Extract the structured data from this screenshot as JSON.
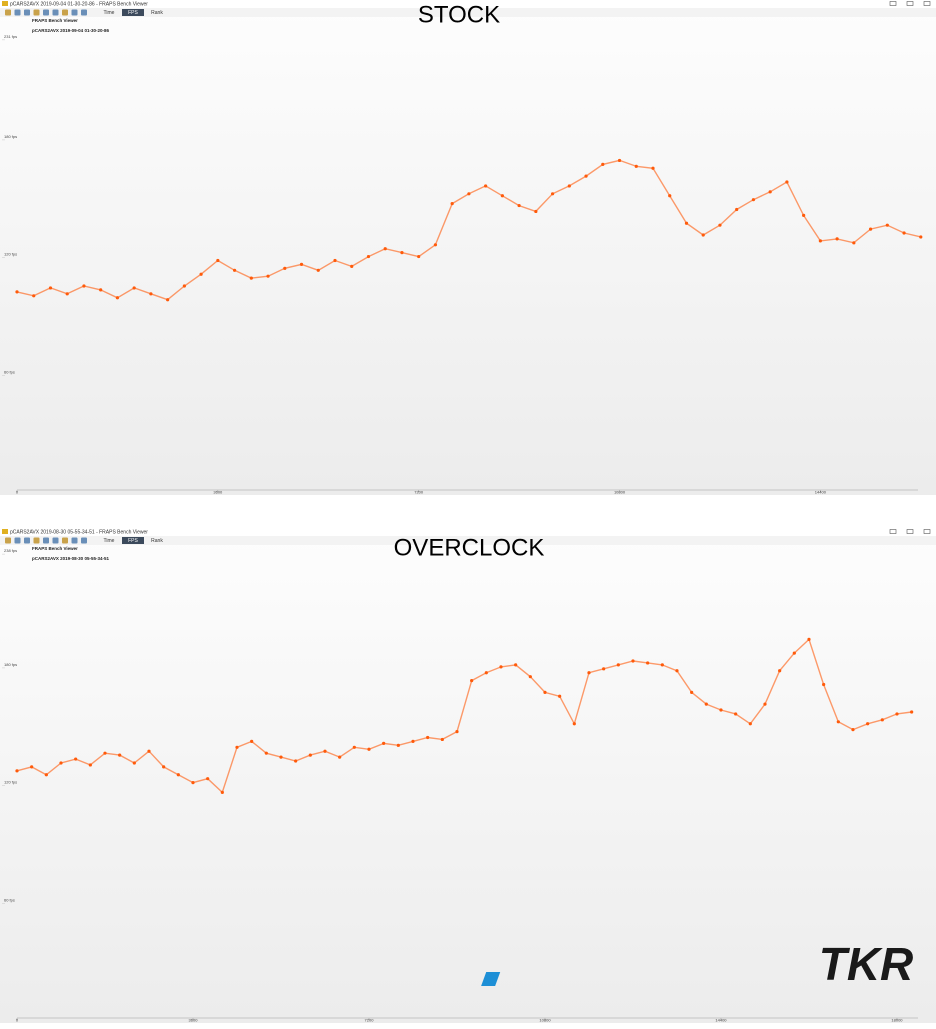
{
  "windows": [
    {
      "title": "pCARS2AVX 2019-09-04 01-30-20-86 - FRAPS Bench Viewer",
      "tabs": [
        "Time",
        "FPS",
        "Rank"
      ],
      "heading": "FRAPS Bench Viewer",
      "file": "pCARS2AVX 2019-09-04 01-30-20-86"
    },
    {
      "title": "pCARS2AVX 2019-08-30 05-55-34-51 - FRAPS Bench Viewer",
      "tabs": [
        "Time",
        "FPS",
        "Rank"
      ],
      "heading": "FRAPS Bench Viewer",
      "file": "pCARS2AVX 2019-08-30 05-55-34-51"
    }
  ],
  "logo": "TKR",
  "chart_data": [
    {
      "type": "line",
      "title": "STOCK",
      "color": "#ff5a0a",
      "x": [
        0,
        300,
        600,
        900,
        1200,
        1500,
        1800,
        2100,
        2400,
        2700,
        3000,
        3300,
        3600,
        3900,
        4200,
        4500,
        4800,
        5100,
        5400,
        5700,
        6000,
        6300,
        6600,
        6900,
        7200,
        7500,
        7800,
        8100,
        8400,
        8700,
        9000,
        9300,
        9600,
        9900,
        10200,
        10500,
        10800,
        11100,
        11400,
        11700,
        12000,
        12300,
        12600,
        12900,
        13200,
        13500,
        13800,
        14100,
        14400,
        14700,
        15000,
        15300,
        15600,
        15900,
        16200
      ],
      "values": [
        101,
        99,
        103,
        100,
        104,
        102,
        98,
        103,
        100,
        97,
        104,
        110,
        117,
        112,
        108,
        109,
        113,
        115,
        112,
        117,
        114,
        119,
        123,
        121,
        119,
        125,
        146,
        151,
        155,
        150,
        145,
        142,
        151,
        155,
        160,
        166,
        168,
        165,
        164,
        150,
        136,
        130,
        135,
        143,
        148,
        152,
        157,
        140,
        127,
        128,
        126,
        133,
        135,
        131,
        129
      ],
      "xlim": [
        0,
        16150
      ],
      "xticks": [
        0,
        3600,
        7200,
        10800,
        14400
      ],
      "ylim": [
        0,
        231
      ],
      "yticks": [
        {
          "value": 60,
          "label": "60 fps"
        },
        {
          "value": 120,
          "label": "120 fps"
        },
        {
          "value": 180,
          "label": "180 fps"
        },
        {
          "value": 231,
          "label": "231 fps"
        }
      ]
    },
    {
      "type": "line",
      "title": "OVERCLOCK",
      "color": "#ff5a0a",
      "x": [
        0,
        300,
        600,
        900,
        1200,
        1500,
        1800,
        2100,
        2400,
        2700,
        3000,
        3300,
        3600,
        3900,
        4200,
        4500,
        4800,
        5100,
        5400,
        5700,
        6000,
        6300,
        6600,
        6900,
        7200,
        7500,
        7800,
        8100,
        8400,
        8700,
        9000,
        9300,
        9600,
        9900,
        10200,
        10500,
        10800,
        11100,
        11400,
        11700,
        12000,
        12300,
        12600,
        12900,
        13200,
        13500,
        13800,
        14100,
        14400,
        14700,
        15000,
        15300,
        15600,
        15900,
        16200,
        16500,
        16800,
        17100,
        17400,
        17700,
        18000,
        18300
      ],
      "values": [
        126,
        128,
        124,
        130,
        132,
        129,
        135,
        134,
        130,
        136,
        128,
        124,
        120,
        122,
        115,
        138,
        141,
        135,
        133,
        131,
        134,
        136,
        133,
        138,
        137,
        140,
        139,
        141,
        143,
        142,
        146,
        172,
        176,
        179,
        180,
        174,
        166,
        164,
        150,
        176,
        178,
        180,
        182,
        181,
        180,
        177,
        166,
        160,
        157,
        155,
        150,
        160,
        177,
        186,
        193,
        170,
        151,
        147,
        150,
        152,
        155,
        156
      ],
      "xlim": [
        0,
        18430
      ],
      "xticks": [
        0,
        3600,
        7200,
        10800,
        14400,
        18000
      ],
      "ylim": [
        0,
        238
      ],
      "yticks": [
        {
          "value": 60,
          "label": "60 fps"
        },
        {
          "value": 120,
          "label": "120 fps"
        },
        {
          "value": 180,
          "label": "180 fps"
        },
        {
          "value": 238,
          "label": "238 fps"
        }
      ]
    }
  ]
}
